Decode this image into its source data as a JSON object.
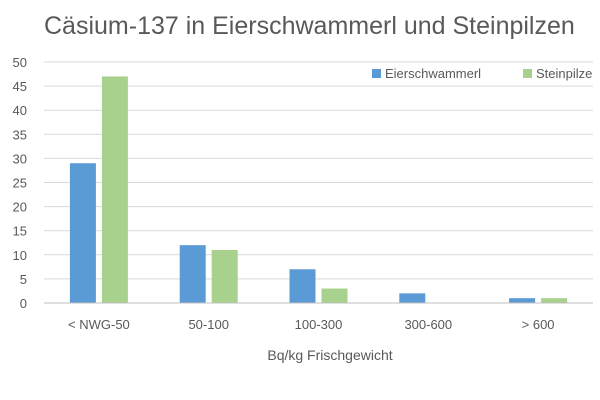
{
  "chart_data": {
    "type": "bar",
    "title": "Cäsium-137 in Eierschwammerl und Steinpilzen",
    "xlabel": "Bq/kg Frischgewicht",
    "ylabel": "",
    "categories": [
      "< NWG-50",
      "50-100",
      "100-300",
      "300-600",
      "> 600"
    ],
    "series": [
      {
        "name": "Eierschwammerl",
        "values": [
          29,
          12,
          7,
          2,
          1
        ],
        "color": "#5b9bd5"
      },
      {
        "name": "Steinpilze",
        "values": [
          47,
          11,
          3,
          0,
          1
        ],
        "color": "#a9d18e"
      }
    ],
    "ylim": [
      0,
      50
    ],
    "yticks": [
      0,
      5,
      10,
      15,
      20,
      25,
      30,
      35,
      40,
      45,
      50
    ],
    "grid": true,
    "legend": "top-right"
  }
}
